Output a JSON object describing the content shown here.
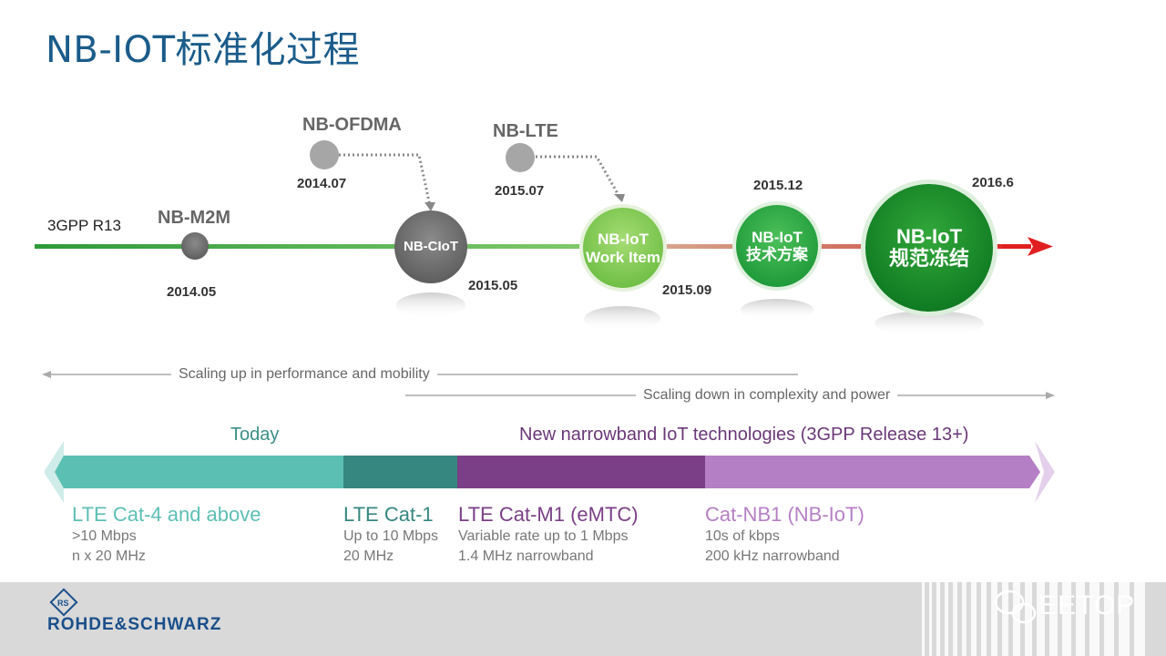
{
  "title": "NB-IOT标准化过程",
  "timeline": {
    "start_label": "3GPP R13",
    "nodes": [
      {
        "id": "nb-m2m",
        "name": "NB-M2M",
        "date": "2014.05"
      },
      {
        "id": "nb-ofdma",
        "name": "NB-OFDMA",
        "date": "2014.07"
      },
      {
        "id": "nb-ciot",
        "name": "NB-CIoT",
        "date": "2015.05"
      },
      {
        "id": "nb-lte",
        "name": "NB-LTE",
        "date": "2015.07"
      },
      {
        "id": "work-item",
        "name_line1": "NB-IoT",
        "name_line2": "Work Item",
        "date": "2015.09"
      },
      {
        "id": "tech-plan",
        "name_line1": "NB-IoT",
        "name_line2": "技术方案",
        "date": "2015.12"
      },
      {
        "id": "freeze",
        "name_line1": "NB-IoT",
        "name_line2": "规范冻结",
        "date": "2016.6"
      }
    ]
  },
  "scaling": {
    "up": "Scaling up in performance and mobility",
    "down": "Scaling down in complexity and power"
  },
  "bands": {
    "today": "Today",
    "new": "New narrowband IoT technologies (3GPP Release 13+)",
    "colors": {
      "cat4": "#5cbfb4",
      "cat1": "#36877f",
      "catm1": "#7a3f86",
      "nb1": "#b57fc5"
    }
  },
  "techs": [
    {
      "title": "LTE Cat-4 and above",
      "line1": ">10 Mbps",
      "line2": "n x 20 MHz",
      "color": "#5cbfb4"
    },
    {
      "title": "LTE Cat-1",
      "line1": "Up to 10 Mbps",
      "line2": "20 MHz",
      "color": "#36877f"
    },
    {
      "title": "LTE Cat-M1 (eMTC)",
      "line1": "Variable rate up to 1 Mbps",
      "line2": "1.4 MHz narrowband",
      "color": "#7a3f86"
    },
    {
      "title": "Cat-NB1 (NB-IoT)",
      "line1": "10s of kbps",
      "line2": "200 kHz narrowband",
      "color": "#b57fc5"
    }
  ],
  "footer": {
    "brand": "ROHDE&SCHWARZ",
    "watermark": "EETOP"
  }
}
